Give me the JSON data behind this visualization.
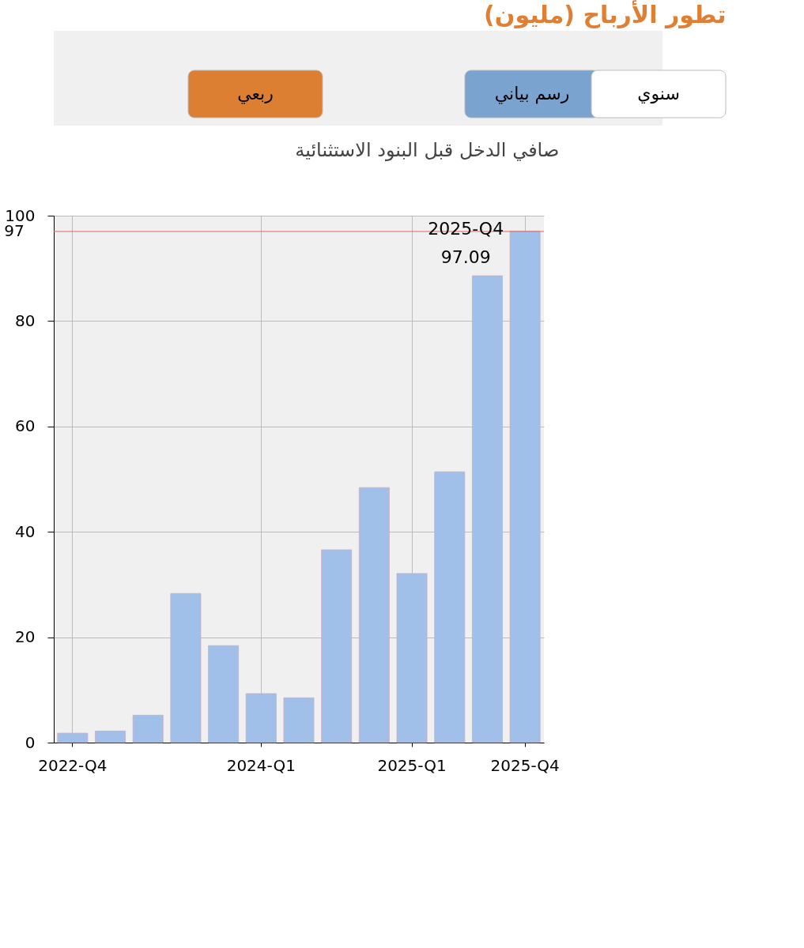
{
  "chart_data": {
    "type": "bar",
    "title": "تطور الأرباح (مليون)",
    "subtitle": "صافي الدخل قبل البنود الاستثنائية",
    "categories": [
      "2022-Q4",
      null,
      null,
      null,
      null,
      "2024-Q1",
      null,
      null,
      null,
      "2025-Q1",
      null,
      null,
      "2025-Q4"
    ],
    "values": [
      1.8,
      2.2,
      5.2,
      28.3,
      18.4,
      9.3,
      8.5,
      36.6,
      48.4,
      32.1,
      51.4,
      88.6,
      97.09
    ],
    "color": "#a0c0ea",
    "ylim": [
      0,
      100
    ],
    "yticks": [
      0,
      20,
      40,
      60,
      80,
      100
    ],
    "grid": true,
    "ref_lines": [
      {
        "axis": "y",
        "value": 97,
        "label": "97",
        "color": "#e06666"
      }
    ],
    "annotations": [
      "رسم بياني",
      "سنوي",
      "ربعي",
      {
        "text": "2025-Q4\n97.09",
        "x": "2025-Q4",
        "y": 97.09
      }
    ]
  }
}
